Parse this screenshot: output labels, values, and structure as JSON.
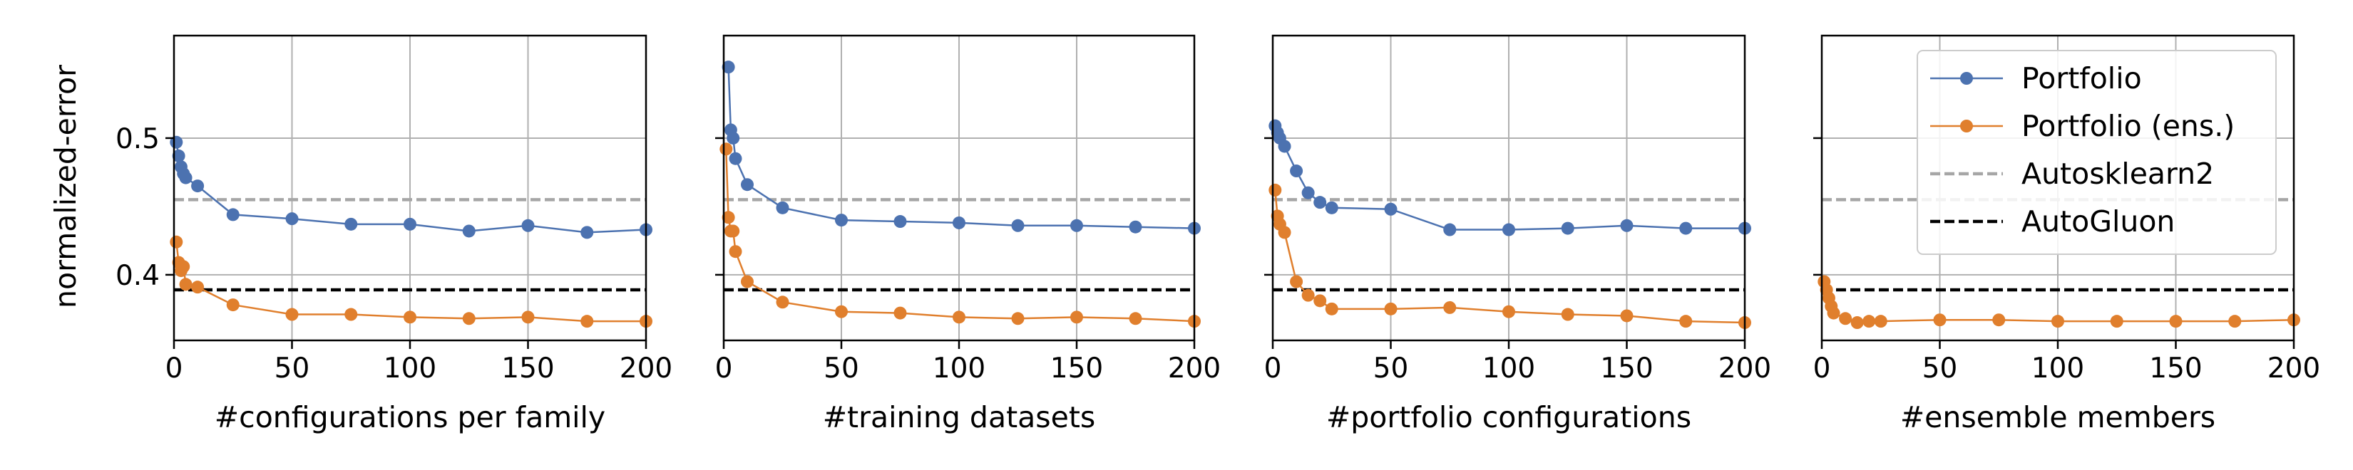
{
  "ylabel": "normalized-error",
  "y_ticks": [
    0.4,
    0.5
  ],
  "ylim": [
    0.352,
    0.575
  ],
  "x_ticks": [
    0,
    50,
    100,
    150,
    200
  ],
  "xlim": [
    0,
    200
  ],
  "grid": true,
  "colors": {
    "portfolio": "#4c72b0",
    "portfolio_ens": "#e07f2d",
    "autosklearn2": "#a6a6a6",
    "autogluon": "#000000"
  },
  "legend": {
    "location": "top-right",
    "panel": 4,
    "entries": [
      {
        "label": "Portfolio",
        "style": "line-marker",
        "color": "#4c72b0"
      },
      {
        "label": "Portfolio (ens.)",
        "style": "line-marker",
        "color": "#e07f2d"
      },
      {
        "label": "Autosklearn2",
        "style": "dashed",
        "color": "#a6a6a6"
      },
      {
        "label": "AutoGluon",
        "style": "dashed",
        "color": "#000000"
      }
    ]
  },
  "chart_data": [
    {
      "type": "line",
      "xlabel": "#configurations per family",
      "baselines": {
        "autosklearn2": 0.455,
        "autogluon": 0.389
      },
      "series": [
        {
          "name": "Portfolio",
          "x": [
            1,
            2,
            3,
            4,
            5,
            10,
            25,
            50,
            75,
            100,
            125,
            150,
            175,
            200
          ],
          "y": [
            0.497,
            0.487,
            0.479,
            0.474,
            0.471,
            0.465,
            0.444,
            0.441,
            0.437,
            0.437,
            0.432,
            0.436,
            0.431,
            0.433
          ]
        },
        {
          "name": "Portfolio (ens.)",
          "x": [
            1,
            2,
            3,
            4,
            5,
            10,
            25,
            50,
            75,
            100,
            125,
            150,
            175,
            200
          ],
          "y": [
            0.424,
            0.409,
            0.403,
            0.406,
            0.393,
            0.391,
            0.378,
            0.371,
            0.371,
            0.369,
            0.368,
            0.369,
            0.366,
            0.366
          ]
        }
      ]
    },
    {
      "type": "line",
      "xlabel": "#training datasets",
      "baselines": {
        "autosklearn2": 0.455,
        "autogluon": 0.389
      },
      "series": [
        {
          "name": "Portfolio",
          "x": [
            2,
            3,
            4,
            5,
            10,
            25,
            50,
            75,
            100,
            125,
            150,
            175,
            200
          ],
          "y": [
            0.552,
            0.506,
            0.5,
            0.485,
            0.466,
            0.449,
            0.44,
            0.439,
            0.438,
            0.436,
            0.436,
            0.435,
            0.434
          ]
        },
        {
          "name": "Portfolio (ens.)",
          "x": [
            1,
            2,
            3,
            4,
            5,
            10,
            25,
            50,
            75,
            100,
            125,
            150,
            175,
            200
          ],
          "y": [
            0.492,
            0.442,
            0.432,
            0.432,
            0.417,
            0.395,
            0.38,
            0.373,
            0.372,
            0.369,
            0.368,
            0.369,
            0.368,
            0.366
          ]
        }
      ]
    },
    {
      "type": "line",
      "xlabel": "#portfolio configurations",
      "baselines": {
        "autosklearn2": 0.455,
        "autogluon": 0.389
      },
      "series": [
        {
          "name": "Portfolio",
          "x": [
            1,
            2,
            3,
            5,
            10,
            15,
            20,
            25,
            50,
            75,
            100,
            125,
            150,
            175,
            200
          ],
          "y": [
            0.509,
            0.504,
            0.5,
            0.494,
            0.476,
            0.46,
            0.453,
            0.449,
            0.448,
            0.433,
            0.433,
            0.434,
            0.436,
            0.434,
            0.434
          ]
        },
        {
          "name": "Portfolio (ens.)",
          "x": [
            1,
            2,
            3,
            5,
            10,
            15,
            20,
            25,
            50,
            75,
            100,
            125,
            150,
            175,
            200
          ],
          "y": [
            0.462,
            0.443,
            0.437,
            0.431,
            0.395,
            0.385,
            0.381,
            0.375,
            0.375,
            0.376,
            0.373,
            0.371,
            0.37,
            0.366,
            0.365
          ]
        }
      ]
    },
    {
      "type": "line",
      "xlabel": "#ensemble members",
      "baselines": {
        "autosklearn2": 0.455,
        "autogluon": 0.389
      },
      "series": [
        {
          "name": "Portfolio (ens.)",
          "x": [
            1,
            2,
            3,
            4,
            5,
            10,
            15,
            20,
            25,
            50,
            75,
            100,
            125,
            150,
            175,
            200
          ],
          "y": [
            0.395,
            0.389,
            0.383,
            0.377,
            0.372,
            0.368,
            0.365,
            0.366,
            0.366,
            0.367,
            0.367,
            0.366,
            0.366,
            0.366,
            0.366,
            0.367
          ]
        }
      ]
    }
  ]
}
